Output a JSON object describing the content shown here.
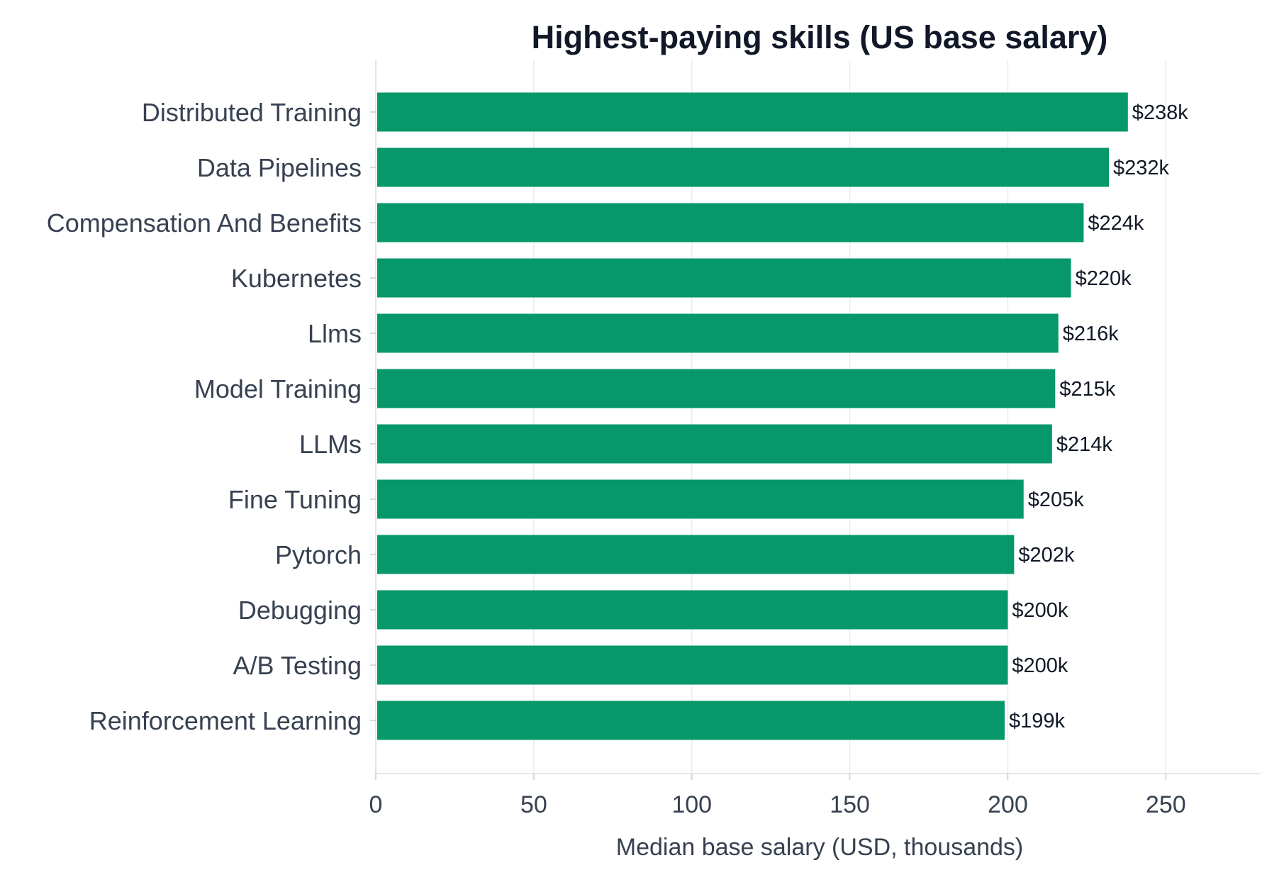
{
  "chart_data": {
    "type": "bar",
    "orientation": "horizontal",
    "title": "Highest-paying skills (US base salary)",
    "xlabel": "Median base salary (USD, thousands)",
    "ylabel": "",
    "xlim": [
      0,
      280
    ],
    "xticks": [
      0,
      50,
      100,
      150,
      200,
      250
    ],
    "grid": true,
    "bar_color": "#06976a",
    "categories": [
      "Distributed Training",
      "Data Pipelines",
      "Compensation And Benefits",
      "Kubernetes",
      "Llms",
      "Model Training",
      "LLMs",
      "Fine Tuning",
      "Pytorch",
      "Debugging",
      "A/B Testing",
      "Reinforcement Learning"
    ],
    "values": [
      238,
      232,
      224,
      220,
      216,
      215,
      214,
      205,
      202,
      200,
      200,
      199
    ],
    "data_labels": [
      "$238k",
      "$232k",
      "$224k",
      "$220k",
      "$216k",
      "$215k",
      "$214k",
      "$205k",
      "$202k",
      "$200k",
      "$200k",
      "$199k"
    ]
  }
}
